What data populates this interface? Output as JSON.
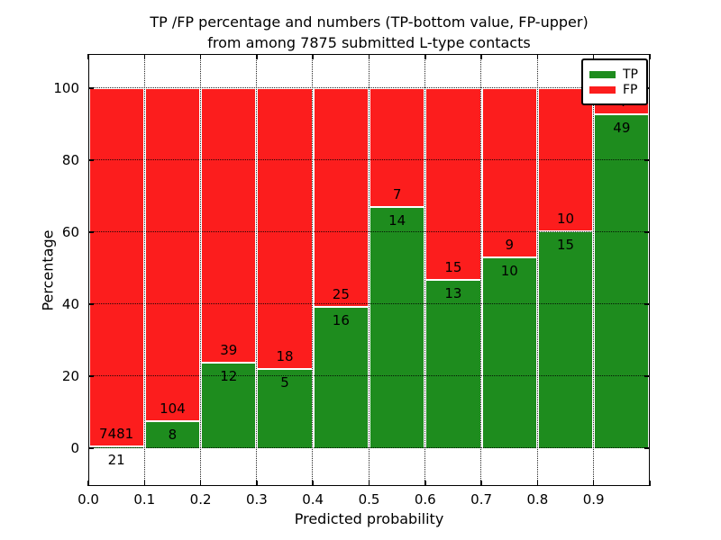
{
  "title": {
    "line1": "TP /FP percentage and numbers (TP-bottom value, FP-upper)",
    "line2": "from among 7875 submitted L-type contacts"
  },
  "chart_data": {
    "type": "bar",
    "stacked": true,
    "title": "TP /FP percentage and numbers (TP-bottom value, FP-upper) from among 7875 submitted L-type contacts",
    "xlabel": "Predicted probability",
    "ylabel": "Percentage",
    "xlim": [
      0.0,
      1.0
    ],
    "ylim": [
      -10.5,
      109.5
    ],
    "bin_width": 0.1,
    "xticks": [
      "0.0",
      "0.1",
      "0.2",
      "0.3",
      "0.4",
      "0.5",
      "0.6",
      "0.7",
      "0.8",
      "0.9"
    ],
    "yticks": [
      "0",
      "20",
      "40",
      "60",
      "80",
      "100"
    ],
    "ytick_values": [
      0,
      20,
      40,
      60,
      80,
      100
    ],
    "grid": {
      "style": "dotted",
      "color": "#000000",
      "on_top": true
    },
    "colors": {
      "tp": "#1e8c1e",
      "fp": "#fc1d1d"
    },
    "legend": {
      "position": "upper right",
      "entries": [
        "TP",
        "FP"
      ]
    },
    "series": [
      {
        "name": "TP",
        "color": "#1e8c1e",
        "counts": [
          21,
          8,
          12,
          5,
          16,
          14,
          13,
          10,
          15,
          49
        ]
      },
      {
        "name": "FP",
        "color": "#fc1d1d",
        "counts": [
          7481,
          104,
          39,
          18,
          25,
          7,
          15,
          9,
          10,
          4
        ]
      }
    ],
    "bins": [
      {
        "range": "0.0-0.1",
        "tp": 21,
        "fp": 7481,
        "tp_pct": 0.28,
        "fp_pct": 99.72
      },
      {
        "range": "0.1-0.2",
        "tp": 8,
        "fp": 104,
        "tp_pct": 7.14,
        "fp_pct": 92.86
      },
      {
        "range": "0.2-0.3",
        "tp": 12,
        "fp": 39,
        "tp_pct": 23.53,
        "fp_pct": 76.47
      },
      {
        "range": "0.3-0.4",
        "tp": 5,
        "fp": 18,
        "tp_pct": 21.74,
        "fp_pct": 78.26
      },
      {
        "range": "0.4-0.5",
        "tp": 16,
        "fp": 25,
        "tp_pct": 39.02,
        "fp_pct": 60.98
      },
      {
        "range": "0.5-0.6",
        "tp": 14,
        "fp": 7,
        "tp_pct": 66.67,
        "fp_pct": 33.33
      },
      {
        "range": "0.6-0.7",
        "tp": 13,
        "fp": 15,
        "tp_pct": 46.43,
        "fp_pct": 53.57
      },
      {
        "range": "0.7-0.8",
        "tp": 10,
        "fp": 9,
        "tp_pct": 52.63,
        "fp_pct": 47.37
      },
      {
        "range": "0.8-0.9",
        "tp": 15,
        "fp": 10,
        "tp_pct": 60.0,
        "fp_pct": 40.0
      },
      {
        "range": "0.9-1.0",
        "tp": 49,
        "fp": 4,
        "tp_pct": 92.45,
        "fp_pct": 7.55
      }
    ]
  }
}
